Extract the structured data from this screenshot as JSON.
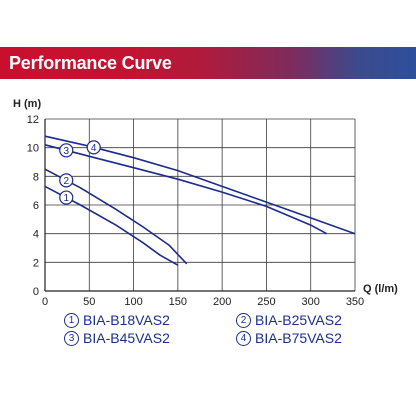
{
  "title": "Performance Curve",
  "colors": {
    "curve": "#1c2b8c",
    "legend_text": "#1c2f8f",
    "grid": "#3a3a3a"
  },
  "chart_data": {
    "type": "line",
    "title": "Performance Curve",
    "xlabel": "Q (l/m)",
    "ylabel": "H (m)",
    "xlim": [
      0,
      350
    ],
    "ylim": [
      0,
      12
    ],
    "x_ticks": [
      "0",
      "50",
      "100",
      "150",
      "200",
      "250",
      "300",
      "350"
    ],
    "y_ticks": [
      "0",
      "2",
      "4",
      "6",
      "8",
      "10",
      "12"
    ],
    "grid": true,
    "series": [
      {
        "name": "BIA-B18VAS2",
        "marker": "1",
        "label_x": 24,
        "x": [
          0,
          40,
          80,
          110,
          130,
          150
        ],
        "y": [
          7.3,
          6.0,
          4.6,
          3.4,
          2.5,
          1.8
        ]
      },
      {
        "name": "BIA-B25VAS2",
        "marker": "2",
        "label_x": 24,
        "x": [
          0,
          40,
          80,
          110,
          140,
          160
        ],
        "y": [
          8.5,
          7.2,
          5.7,
          4.5,
          3.2,
          1.9
        ]
      },
      {
        "name": "BIA-B45VAS2",
        "marker": "3",
        "label_x": 24,
        "x": [
          0,
          50,
          100,
          150,
          200,
          250,
          300,
          318
        ],
        "y": [
          10.2,
          9.4,
          8.6,
          7.8,
          6.9,
          5.9,
          4.6,
          4.0
        ]
      },
      {
        "name": "BIA-B75VAS2",
        "marker": "4",
        "label_x": 55,
        "x": [
          0,
          50,
          100,
          150,
          200,
          250,
          300,
          350
        ],
        "y": [
          10.8,
          10.1,
          9.3,
          8.4,
          7.3,
          6.2,
          5.1,
          4.0
        ]
      }
    ],
    "legend": [
      {
        "num": "1",
        "text": "BIA-B18VAS2"
      },
      {
        "num": "2",
        "text": "BIA-B25VAS2"
      },
      {
        "num": "3",
        "text": "BIA-B45VAS2"
      },
      {
        "num": "4",
        "text": "BIA-B75VAS2"
      }
    ],
    "legend_placement": "bottom"
  }
}
